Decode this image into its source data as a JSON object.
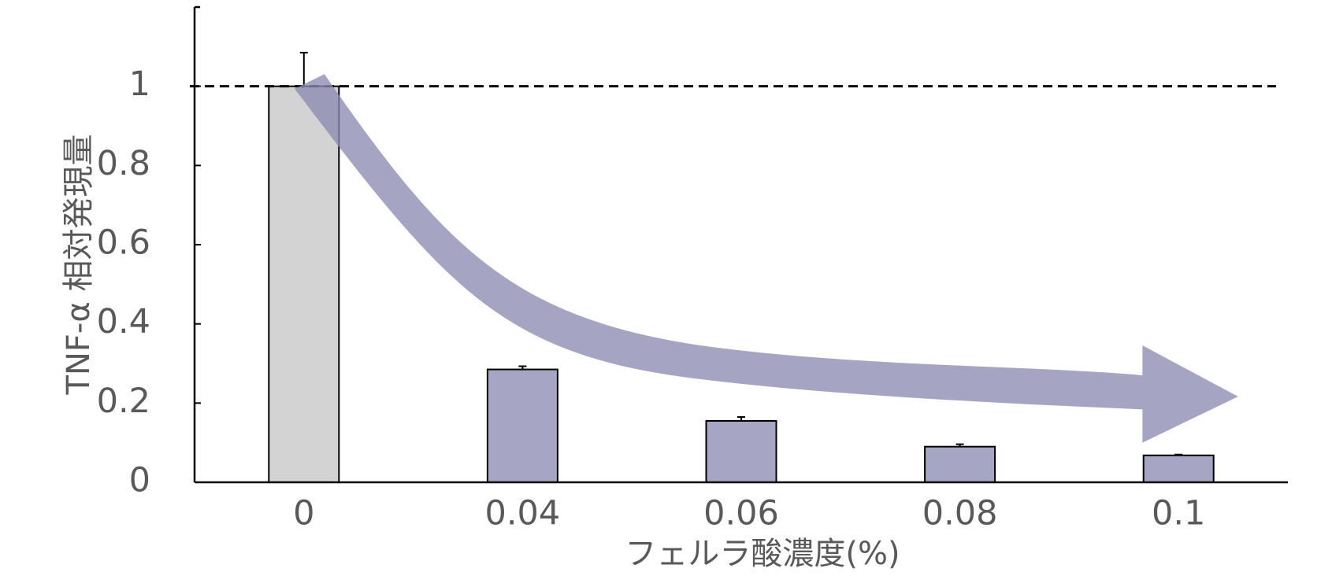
{
  "chart_data": {
    "type": "bar",
    "x_label": "フェルラ酸濃度(%)",
    "y_label": "TNF-α 相対発現量",
    "categories": [
      "0",
      "0.04",
      "0.06",
      "0.08",
      "0.1"
    ],
    "values": [
      1,
      0.285,
      0.155,
      0.09,
      0.068
    ],
    "errors": [
      0.085,
      0.008,
      0.01,
      0.006,
      0.002
    ],
    "colors": [
      "#d3d3d3",
      "#a6a6c4",
      "#a6a6c4",
      "#a6a6c4",
      "#a6a6c4"
    ],
    "ylim": [
      0,
      1.2
    ],
    "yticks": [
      0,
      0.2,
      0.4,
      0.6,
      0.8,
      1
    ],
    "reference_line": 1
  }
}
